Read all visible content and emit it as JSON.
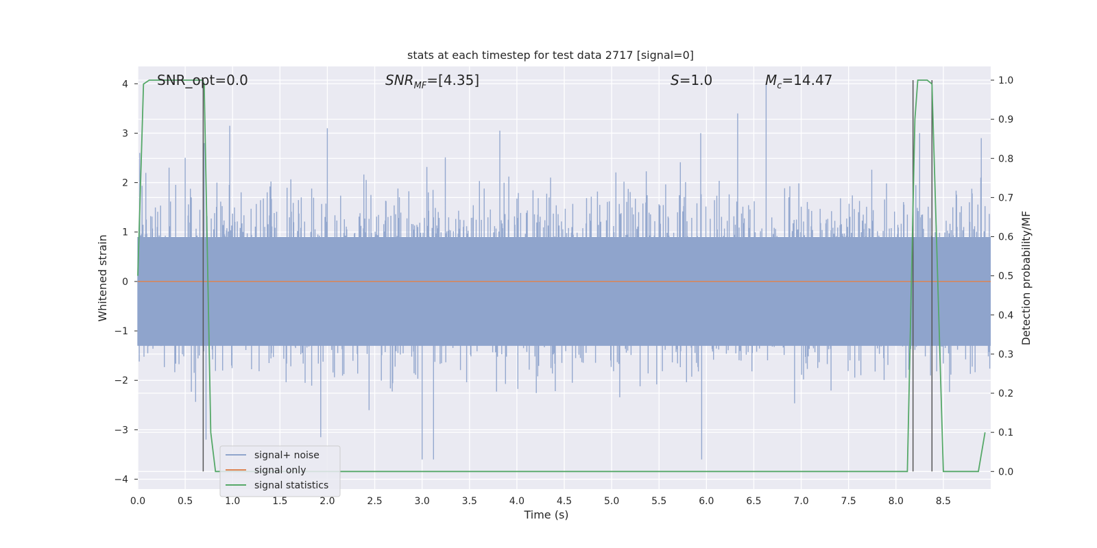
{
  "chart_data": {
    "type": "line",
    "title": "stats at each timestep for test data 2717 [signal=0]",
    "xlabel": "Time (s)",
    "ylabel": "Whitened strain",
    "y2label": "Detection probability/MF",
    "xlim": [
      0,
      9
    ],
    "ylim": [
      -4.2,
      4.35
    ],
    "y2lim": [
      -0.045,
      1.035
    ],
    "xticks": [
      "0.0",
      "0.5",
      "1.0",
      "1.5",
      "2.0",
      "2.5",
      "3.0",
      "3.5",
      "4.0",
      "4.5",
      "5.0",
      "5.5",
      "6.0",
      "6.5",
      "7.0",
      "7.5",
      "8.0",
      "8.5"
    ],
    "yticks": [
      "4",
      "3",
      "2",
      "1",
      "0",
      "−1",
      "−2",
      "−3",
      "−4"
    ],
    "y2ticks": [
      "1.0",
      "0.9",
      "0.8",
      "0.7",
      "0.6",
      "0.5",
      "0.4",
      "0.3",
      "0.2",
      "0.1",
      "0.0"
    ],
    "grid": true,
    "legend_position": "lower-left",
    "annotations": {
      "snr_opt": "SNR_opt=0.0",
      "snr_mf_italic": "SNR",
      "snr_mf_sub": "MF",
      "snr_mf_value": "=[4.35]",
      "s_italic": "S",
      "s_value": "=1.0",
      "mc_italic": "M",
      "mc_sub": "c",
      "mc_value": "=14.47"
    },
    "series": [
      {
        "name": "signal+ noise",
        "axis": "left",
        "color": "#8fa4cc",
        "description_values": "dense noise, approximately ±1.5 core with peaks to ±3.5",
        "peaks": [
          {
            "x": 0.02,
            "y": 2.6
          },
          {
            "x": 0.7,
            "y": 2.8
          },
          {
            "x": 0.72,
            "y": -3.2
          },
          {
            "x": 0.97,
            "y": 3.15
          },
          {
            "x": 1.93,
            "y": -3.15
          },
          {
            "x": 2.0,
            "y": 3.1
          },
          {
            "x": 3.0,
            "y": -3.6
          },
          {
            "x": 3.12,
            "y": -3.6
          },
          {
            "x": 3.82,
            "y": 3.05
          },
          {
            "x": 5.94,
            "y": 3.0
          },
          {
            "x": 5.95,
            "y": -3.6
          },
          {
            "x": 6.33,
            "y": 3.4
          },
          {
            "x": 6.63,
            "y": 4.0
          },
          {
            "x": 8.25,
            "y": 3.0
          },
          {
            "x": 8.9,
            "y": 2.9
          }
        ]
      },
      {
        "name": "signal only",
        "axis": "left",
        "color": "#dd8452",
        "x": [
          0,
          9
        ],
        "y": [
          0,
          0
        ]
      },
      {
        "name": "signal statistics",
        "axis": "right",
        "color": "#55a868",
        "x": [
          0.0,
          0.06,
          0.12,
          0.68,
          0.7,
          0.77,
          0.82,
          8.12,
          8.2,
          8.23,
          8.33,
          8.38,
          8.5,
          8.87,
          8.94
        ],
        "y": [
          0.5,
          0.99,
          1.0,
          1.0,
          0.99,
          0.1,
          0.0,
          0.0,
          0.9,
          1.0,
          1.0,
          0.99,
          0.0,
          0.0,
          0.1
        ]
      }
    ],
    "vlines": [
      0.69,
      8.18,
      8.38
    ]
  }
}
